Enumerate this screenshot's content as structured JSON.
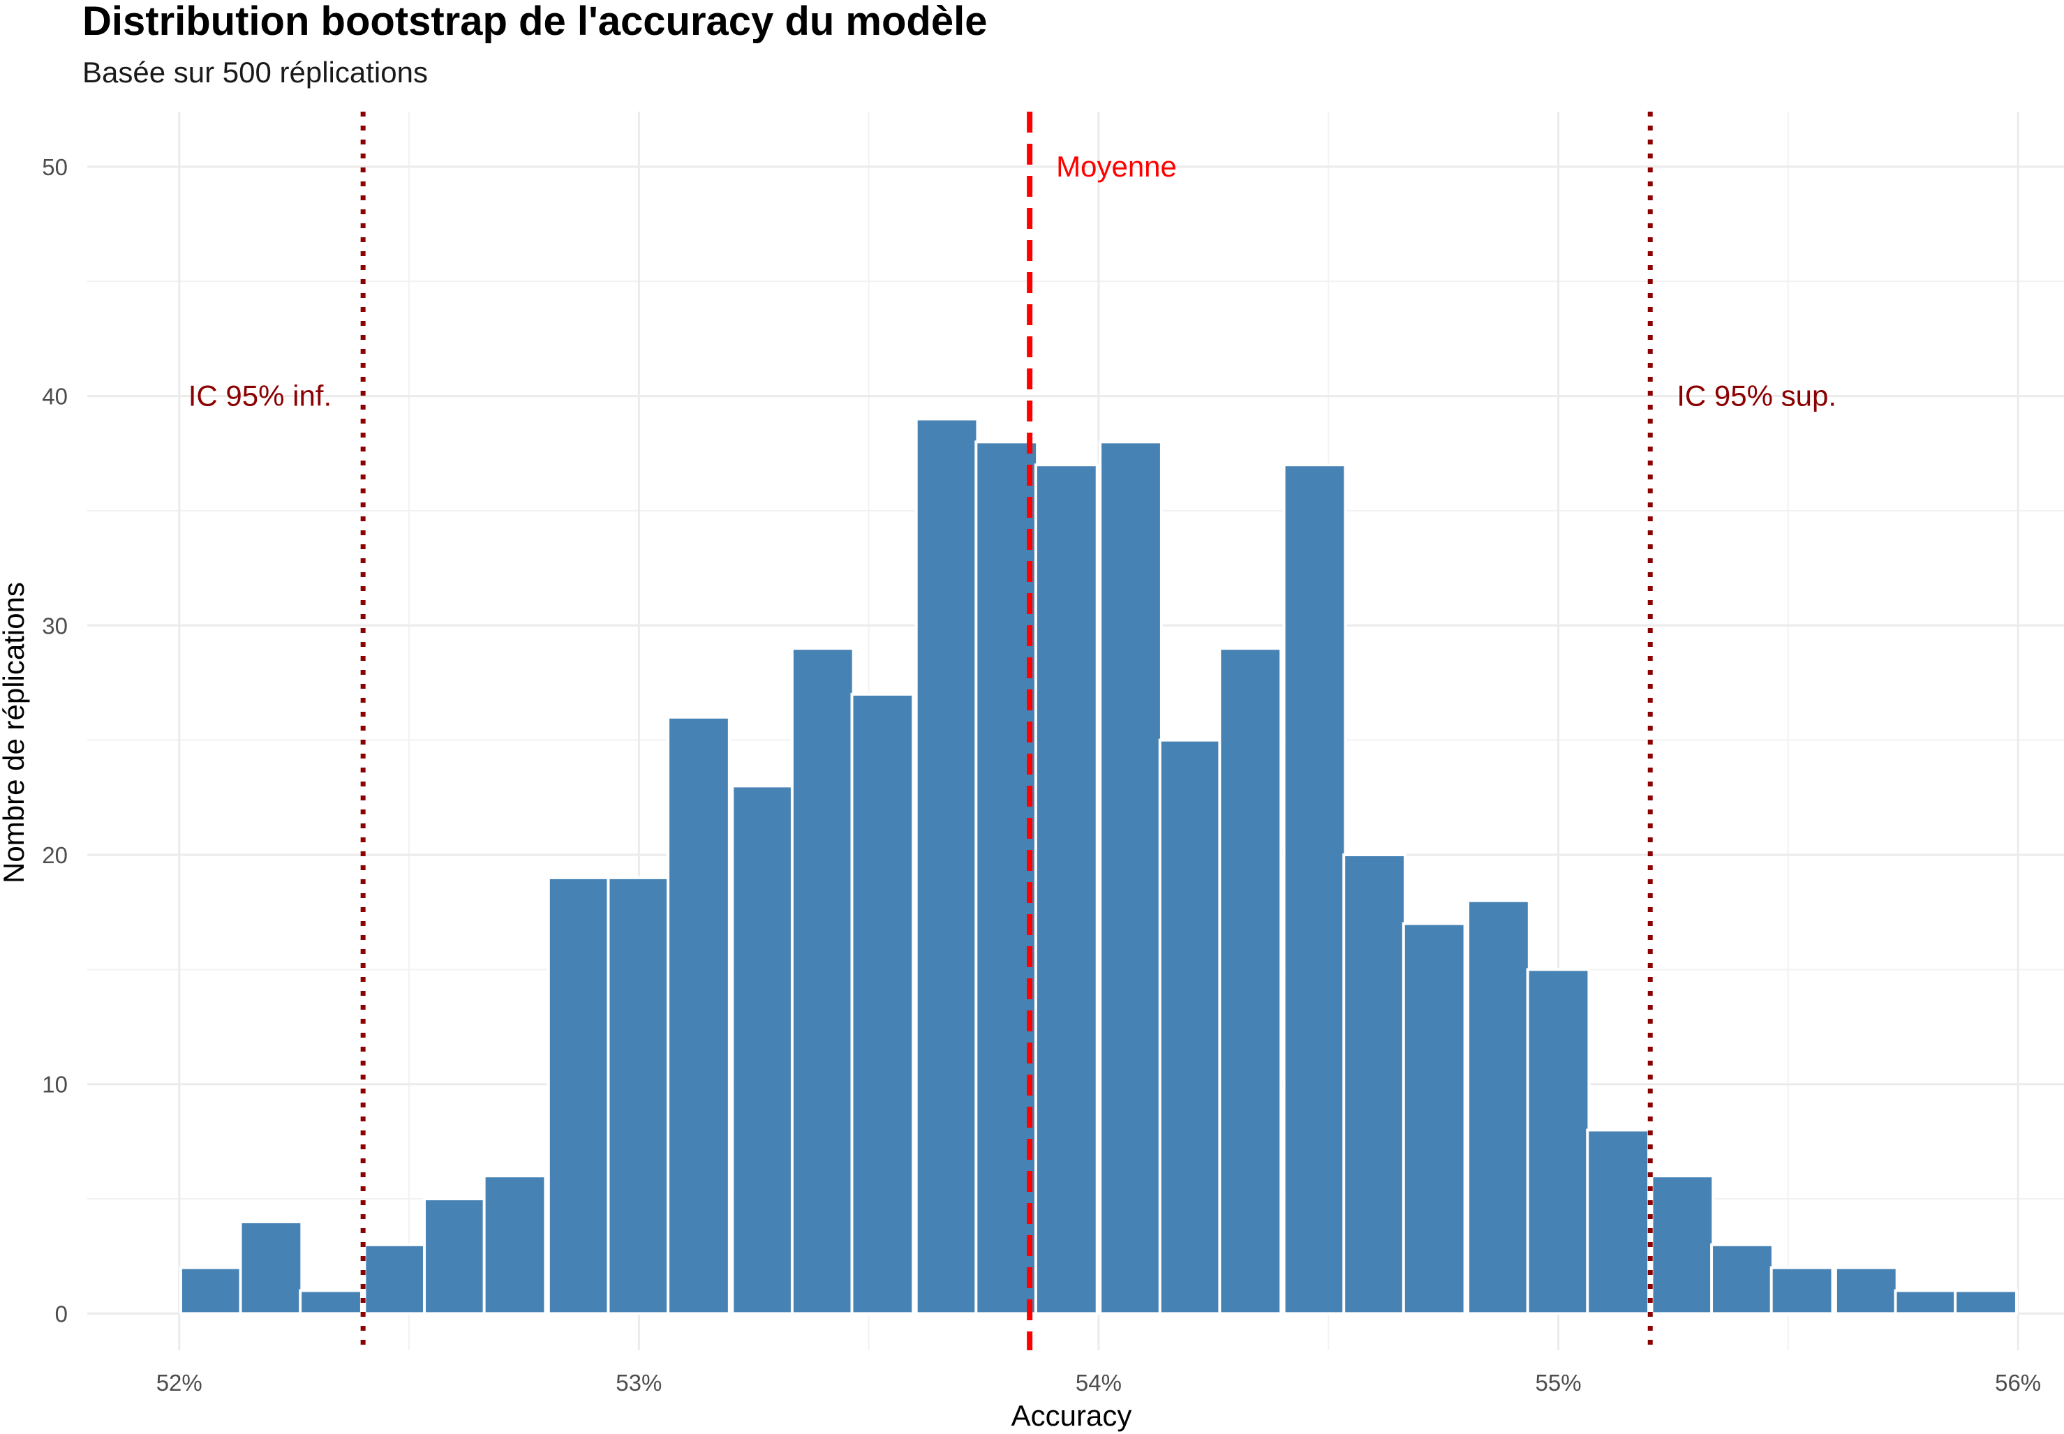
{
  "chart_data": {
    "type": "bar",
    "title": "Distribution bootstrap de l'accuracy du modèle",
    "subtitle": "Basée sur 500 réplications",
    "xlabel": "Accuracy",
    "ylabel": "Nombre de réplications",
    "xlim": [
      51.8,
      56.1
    ],
    "ylim": [
      -1.6,
      52.4
    ],
    "grid": true,
    "x_ticks": [
      {
        "value": 52,
        "label": "52%"
      },
      {
        "value": 53,
        "label": "53%"
      },
      {
        "value": 54,
        "label": "54%"
      },
      {
        "value": 55,
        "label": "55%"
      },
      {
        "value": 56,
        "label": "56%"
      }
    ],
    "y_ticks": [
      {
        "value": 0,
        "label": "0"
      },
      {
        "value": 10,
        "label": "10"
      },
      {
        "value": 20,
        "label": "20"
      },
      {
        "value": 30,
        "label": "30"
      },
      {
        "value": 40,
        "label": "40"
      },
      {
        "value": 50,
        "label": "50"
      }
    ],
    "bin_width": 0.1333,
    "bin_centers": [
      52.07,
      52.2,
      52.33,
      52.47,
      52.6,
      52.73,
      52.87,
      53.0,
      53.13,
      53.27,
      53.4,
      53.53,
      53.67,
      53.8,
      53.93,
      54.07,
      54.2,
      54.33,
      54.47,
      54.6,
      54.73,
      54.87,
      55.0,
      55.13,
      55.27,
      55.4,
      55.53,
      55.67,
      55.8,
      55.93
    ],
    "values": [
      2,
      4,
      1,
      3,
      5,
      6,
      19,
      19,
      26,
      23,
      29,
      27,
      39,
      38,
      37,
      38,
      25,
      29,
      37,
      20,
      17,
      18,
      15,
      8,
      6,
      3,
      2,
      2,
      1,
      1
    ],
    "bar_color": "#4682b4",
    "reference_lines": [
      {
        "name": "IC 95% inf.",
        "value": 52.4,
        "color": "#8b0000",
        "style": "dotted",
        "label_y": 40,
        "label_side": "left"
      },
      {
        "name": "Moyenne",
        "value": 53.85,
        "color": "#ff0000",
        "style": "dashed",
        "label_y": 50,
        "label_side": "right"
      },
      {
        "name": "IC 95% sup.",
        "value": 55.2,
        "color": "#8b0000",
        "style": "dotted",
        "label_y": 40,
        "label_side": "right"
      }
    ]
  }
}
